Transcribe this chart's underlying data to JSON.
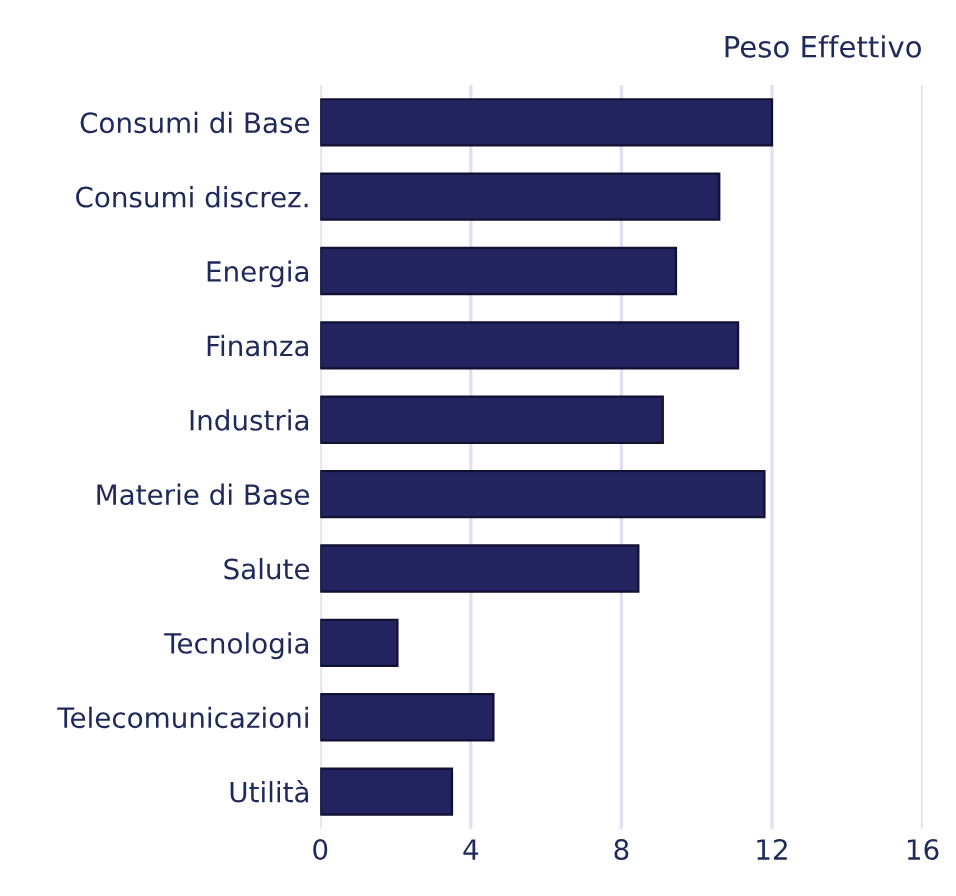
{
  "chart_data": {
    "type": "bar",
    "orientation": "horizontal",
    "title": "Peso Effettivo",
    "categories": [
      "Consumi di Base",
      "Consumi discrez.",
      "Energia",
      "Finanza",
      "Industria",
      "Materie di Base",
      "Salute",
      "Tecnologia",
      "Telecomunicazioni",
      "Utilità"
    ],
    "values": [
      12.0,
      10.6,
      9.45,
      11.1,
      9.1,
      11.8,
      8.45,
      2.05,
      4.6,
      3.5
    ],
    "color": "#22235f",
    "xlim": [
      0,
      16
    ],
    "xticks": [
      0,
      4,
      8,
      12,
      16
    ],
    "grid": "x"
  }
}
